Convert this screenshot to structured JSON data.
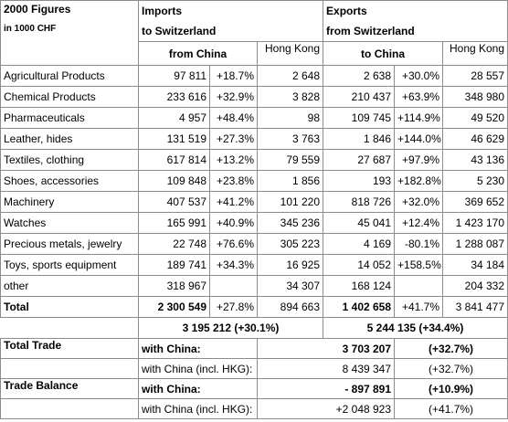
{
  "header": {
    "title": "2000 Figures",
    "unit": "in 1000 CHF",
    "imports_line1": "Imports",
    "imports_line2": "to Switzerland",
    "exports_line1": "Exports",
    "exports_line2": "from Switzerland",
    "from_china": "from China",
    "to_china": "to China",
    "hong_kong": "Hong Kong"
  },
  "rows": [
    {
      "label": "Agricultural Products",
      "imp": "97 811",
      "imp_pct": "+18.7%",
      "imp_hk": "2 648",
      "exp": "2 638",
      "exp_pct": "+30.0%",
      "exp_hk": "28 557"
    },
    {
      "label": "Chemical Products",
      "imp": "233 616",
      "imp_pct": "+32.9%",
      "imp_hk": "3 828",
      "exp": "210 437",
      "exp_pct": "+63.9%",
      "exp_hk": "348 980"
    },
    {
      "label": "Pharmaceuticals",
      "imp": "4 957",
      "imp_pct": "+48.4%",
      "imp_hk": "98",
      "exp": "109 745",
      "exp_pct": "+114.9%",
      "exp_hk": "49 520"
    },
    {
      "label": "Leather, hides",
      "imp": "131 519",
      "imp_pct": "+27.3%",
      "imp_hk": "3 763",
      "exp": "1 846",
      "exp_pct": "+144.0%",
      "exp_hk": "46 629"
    },
    {
      "label": "Textiles, clothing",
      "imp": "617 814",
      "imp_pct": "+13.2%",
      "imp_hk": "79 559",
      "exp": "27 687",
      "exp_pct": "+97.9%",
      "exp_hk": "43 136"
    },
    {
      "label": "Shoes, accessories",
      "imp": "109 848",
      "imp_pct": "+23.8%",
      "imp_hk": "1 856",
      "exp": "193",
      "exp_pct": "+182.8%",
      "exp_hk": "5 230"
    },
    {
      "label": "Machinery",
      "imp": "407 537",
      "imp_pct": "+41.2%",
      "imp_hk": "101 220",
      "exp": "818 726",
      "exp_pct": "+32.0%",
      "exp_hk": "369 652"
    },
    {
      "label": "Watches",
      "imp": "165 991",
      "imp_pct": "+40.9%",
      "imp_hk": "345 236",
      "exp": "45 041",
      "exp_pct": "+12.4%",
      "exp_hk": "1 423 170"
    },
    {
      "label": "Precious metals, jewelry",
      "imp": "22 748",
      "imp_pct": "+76.6%",
      "imp_hk": "305 223",
      "exp": "4 169",
      "exp_pct": "-80.1%",
      "exp_hk": "1 288 087"
    },
    {
      "label": "Toys, sports equipment",
      "imp": "189 741",
      "imp_pct": "+34.3%",
      "imp_hk": "16 925",
      "exp": "14 052",
      "exp_pct": "+158.5%",
      "exp_hk": "34 184"
    },
    {
      "label": "other",
      "imp": "318 967",
      "imp_pct": "",
      "imp_hk": "34 307",
      "exp": "168 124",
      "exp_pct": "",
      "exp_hk": "204 332"
    }
  ],
  "total": {
    "label": "Total",
    "imp": "2 300 549",
    "imp_pct": "+27.8%",
    "imp_hk": "894 663",
    "exp": "1 402 658",
    "exp_pct": "+41.7%",
    "exp_hk": "3 841 477"
  },
  "combined": {
    "imports": "3 195 212  (+30.1%)",
    "exports": "5 244 135  (+34.4%)"
  },
  "total_trade": {
    "label": "Total Trade",
    "row1_label": "with China:",
    "row1_value": "3 703 207",
    "row1_pct": "(+32.7%)",
    "row2_label": "with China (incl. HKG):",
    "row2_value": "8 439 347",
    "row2_pct": "(+32.7%)"
  },
  "trade_balance": {
    "label": "Trade Balance",
    "row1_label": "with China:",
    "row1_value": "- 897 891",
    "row1_pct": "(+10.9%)",
    "row2_label": "with China (incl. HKG):",
    "row2_value": "+2 048 923",
    "row2_pct": "(+41.7%)"
  }
}
